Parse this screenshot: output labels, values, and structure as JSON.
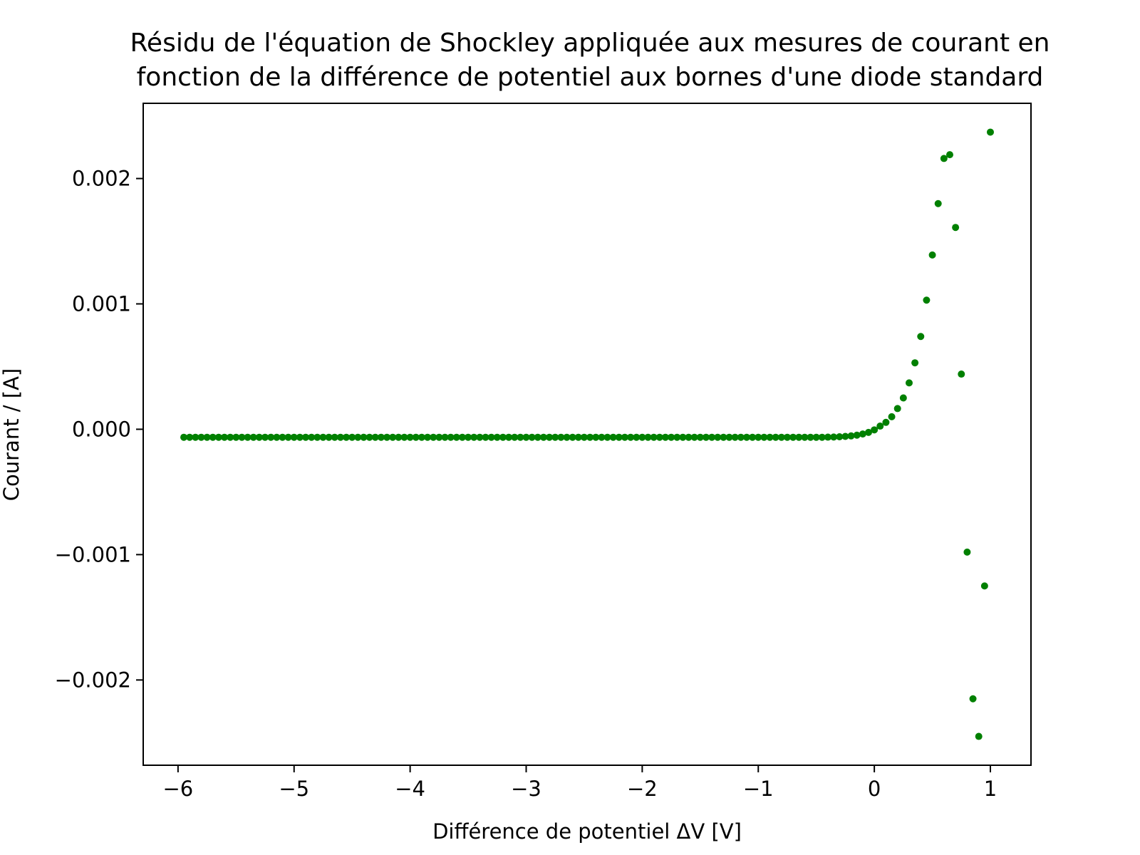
{
  "chart_data": {
    "type": "scatter",
    "title_lines": [
      "Résidu de l'équation de Shockley appliquée aux mesures de courant en",
      "fonction de la différence de potentiel aux bornes d'une diode standard"
    ],
    "xlabel": "Différence de potentiel ΔV [V]",
    "ylabel": "Courant / [A]",
    "xlim": [
      -6.3,
      1.35
    ],
    "ylim": [
      -0.00268,
      0.0026
    ],
    "xticks": [
      -6,
      -5,
      -4,
      -3,
      -2,
      -1,
      0,
      1
    ],
    "xtick_labels": [
      "−6",
      "−5",
      "−4",
      "−3",
      "−2",
      "−1",
      "0",
      "1"
    ],
    "yticks": [
      -0.002,
      -0.001,
      0.0,
      0.001,
      0.002
    ],
    "ytick_labels": [
      "−0.002",
      "−0.001",
      "0.000",
      "0.001",
      "0.002"
    ],
    "grid": false,
    "marker_color": "#008000",
    "flat_segment": {
      "x_start": -5.95,
      "x_end": -0.45,
      "step": 0.05,
      "y": -6.4e-05
    },
    "curve_points": [
      [
        -0.4,
        -6.3e-05
      ],
      [
        -0.35,
        -6.2e-05
      ],
      [
        -0.3,
        -6e-05
      ],
      [
        -0.25,
        -5.7e-05
      ],
      [
        -0.2,
        -5.3e-05
      ],
      [
        -0.15,
        -4.7e-05
      ],
      [
        -0.1,
        -3.8e-05
      ],
      [
        -0.05,
        -2.5e-05
      ],
      [
        0.0,
        -5e-06
      ],
      [
        0.05,
        2.5e-05
      ],
      [
        0.1,
        5.5e-05
      ],
      [
        0.15,
        0.0001
      ],
      [
        0.2,
        0.000165
      ],
      [
        0.25,
        0.00025
      ],
      [
        0.3,
        0.00037
      ],
      [
        0.35,
        0.00053
      ],
      [
        0.4,
        0.00074
      ],
      [
        0.45,
        0.00103
      ],
      [
        0.5,
        0.00139
      ],
      [
        0.55,
        0.0018
      ],
      [
        0.6,
        0.00216
      ],
      [
        0.65,
        0.00219
      ],
      [
        0.7,
        0.00161
      ],
      [
        0.75,
        0.00044
      ],
      [
        0.8,
        -0.00098
      ],
      [
        0.85,
        -0.00215
      ],
      [
        0.9,
        -0.00245
      ],
      [
        0.95,
        -0.00125
      ],
      [
        1.0,
        0.00237
      ]
    ]
  }
}
